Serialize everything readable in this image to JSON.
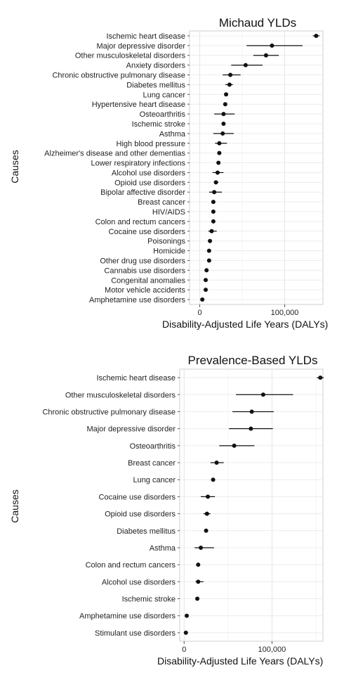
{
  "chart_data": [
    {
      "type": "scatter",
      "title": "Michaud YLDs",
      "xlabel": "Disability-Adjusted Life Years (DALYs)",
      "ylabel": "Causes",
      "xlim": [
        -12000,
        145000
      ],
      "xticks": [
        0,
        100000
      ],
      "xtick_labels": [
        "0",
        "100,000"
      ],
      "grid": true,
      "categories": [
        "Ischemic heart disease",
        "Major depressive disorder",
        "Other musculoskeletal disorders",
        "Anxiety disorders",
        "Chronic obstructive pulmonary disease",
        "Diabetes mellitus",
        "Lung cancer",
        "Hypertensive heart disease",
        "Osteoarthritis",
        "Ischemic stroke",
        "Asthma",
        "High blood pressure",
        "Alzheimer's disease and other dementias",
        "Lower respiratory infections",
        "Alcohol use disorders",
        "Opioid use disorders",
        "Bipolar affective disorder",
        "Breast cancer",
        "HIV/AIDS",
        "Colon and rectum cancers",
        "Cocaine use disorders",
        "Poisonings",
        "Homicide",
        "Other drug use disorders",
        "Cannabis use disorders",
        "Congenital anomalies",
        "Motor vehicle accidents",
        "Amphetamine use disorders"
      ],
      "values": [
        137000,
        85000,
        78000,
        54000,
        36000,
        35000,
        31000,
        30000,
        28000,
        28000,
        27000,
        23000,
        23000,
        22000,
        21000,
        19000,
        17000,
        16000,
        16000,
        16000,
        14000,
        12000,
        11000,
        11000,
        8000,
        7000,
        7000,
        3000
      ],
      "lower": [
        133000,
        55000,
        63000,
        37000,
        27000,
        30000,
        29000,
        28000,
        17000,
        26000,
        16000,
        18000,
        21000,
        21000,
        15000,
        17000,
        11000,
        15000,
        14000,
        15000,
        10000,
        11000,
        10000,
        9000,
        6000,
        6000,
        6000,
        2000
      ],
      "upper": [
        141000,
        121000,
        93000,
        74000,
        48000,
        39000,
        33000,
        32000,
        41000,
        30000,
        40000,
        32000,
        25000,
        24000,
        28000,
        22000,
        26000,
        18000,
        18000,
        18000,
        20000,
        13000,
        13000,
        13000,
        10000,
        8000,
        9000,
        4000
      ]
    },
    {
      "type": "scatter",
      "title": "Prevalence-Based YLDs",
      "xlabel": "Disability-Adjusted Life Years (DALYs)",
      "ylabel": "Causes",
      "xlim": [
        -5000,
        158000
      ],
      "xticks": [
        0,
        100000
      ],
      "xtick_labels": [
        "0",
        "100,000"
      ],
      "grid": true,
      "categories": [
        "Ischemic heart disease",
        "Other musculoskeletal disorders",
        "Chronic obstructive pulmonary disease",
        "Major depressive disorder",
        "Osteoarthritis",
        "Breast cancer",
        "Lung cancer",
        "Cocaine use disorders",
        "Opioid use disorders",
        "Diabetes mellitus",
        "Asthma",
        "Colon and rectum cancers",
        "Alcohol use disorders",
        "Ischemic stroke",
        "Amphetamine use disorders",
        "Stimulant use disorders"
      ],
      "values": [
        155000,
        90000,
        77000,
        76000,
        57000,
        37000,
        33000,
        27000,
        26000,
        25000,
        19000,
        16000,
        16000,
        15000,
        3000,
        2000
      ],
      "lower": [
        151000,
        59000,
        55000,
        51000,
        40000,
        30000,
        32000,
        19000,
        22000,
        24000,
        12000,
        15000,
        13000,
        14000,
        2000,
        1500
      ],
      "upper": [
        159000,
        124000,
        102000,
        101000,
        80000,
        45000,
        34000,
        35000,
        30000,
        26000,
        34000,
        17000,
        22000,
        16000,
        4000,
        2500
      ]
    }
  ]
}
